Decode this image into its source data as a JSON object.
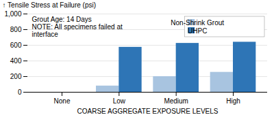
{
  "chart_data": {
    "type": "bar",
    "categories": [
      "None",
      "Low",
      "Medium",
      "High"
    ],
    "series": [
      {
        "name": "Non-Shrink Grout",
        "color": "#a8c4e0",
        "values": [
          0,
          80,
          200,
          255
        ]
      },
      {
        "name": "UHPC",
        "color": "#2e75b6",
        "values": [
          0,
          575,
          625,
          640
        ]
      }
    ],
    "xlabel": "COARSE AGGREGATE EXPOSURE LEVELS",
    "ylabel": "Tensile Stress at Failure (psi)",
    "ylim": [
      0,
      1000
    ],
    "yticks": [
      0,
      200,
      400,
      600,
      800,
      {
        "value": 1000,
        "label": "1,000"
      }
    ],
    "grid": true,
    "legend": "upper right",
    "annotations": [
      "Grout Age: 14 Days",
      "NOTE: All specimens failed at",
      "interface"
    ]
  }
}
